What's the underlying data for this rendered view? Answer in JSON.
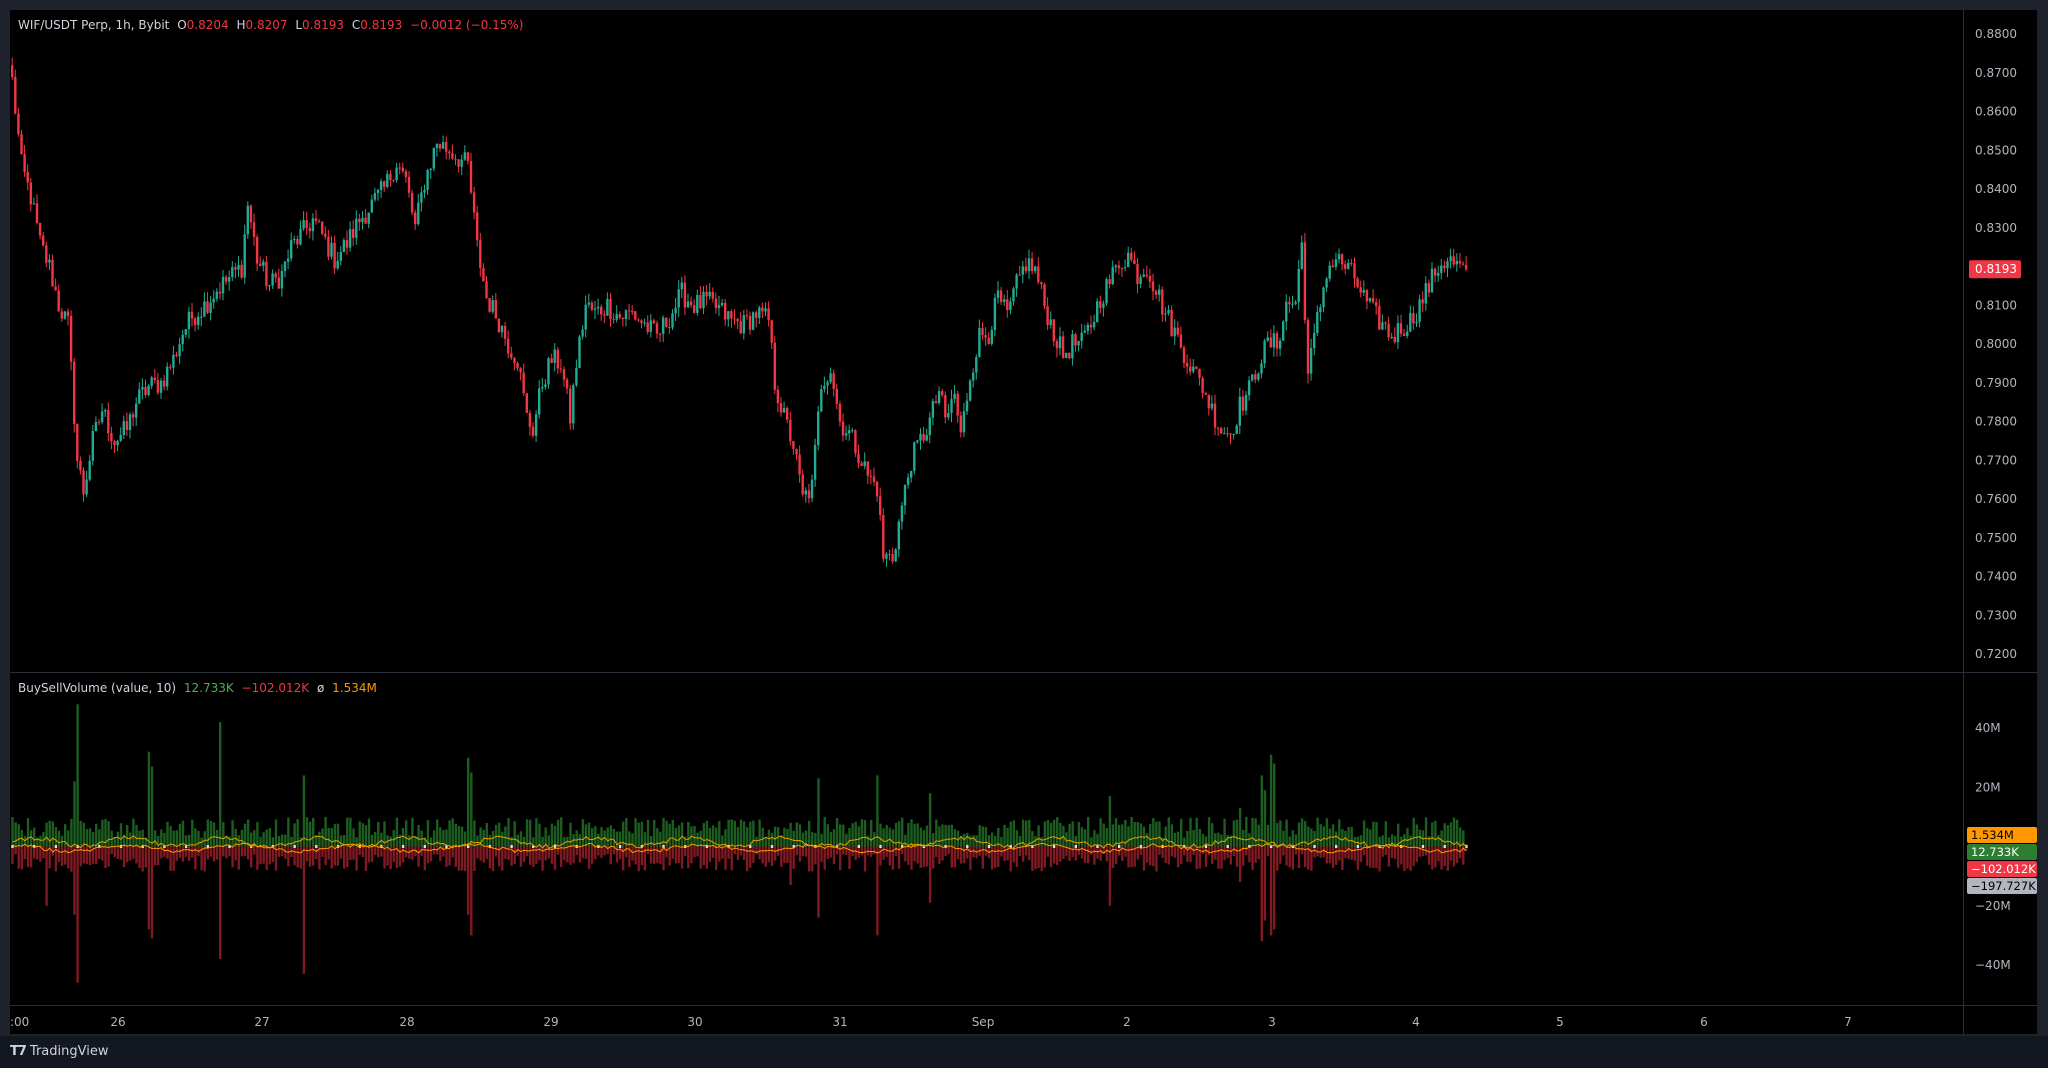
{
  "header": {
    "symbol": "WIF/USDT Perp, 1h, Bybit",
    "o_label": "O",
    "o_value": "0.8204",
    "h_label": "H",
    "h_value": "0.8207",
    "l_label": "L",
    "l_value": "0.8193",
    "c_label": "C",
    "c_value": "0.8193",
    "change": "−0.0012 (−0.15%)"
  },
  "volume_legend": {
    "name": "BuySellVolume (value, 10)",
    "buy": "12.733K",
    "sell": "−102.012K",
    "avg_symbol": "ø",
    "avg": "1.534M"
  },
  "price_axis": {
    "ticks": [
      "0.8800",
      "0.8700",
      "0.8600",
      "0.8500",
      "0.8400",
      "0.8300",
      "0.8100",
      "0.8000",
      "0.7900",
      "0.7800",
      "0.7700",
      "0.7600",
      "0.7500",
      "0.7400",
      "0.7300",
      "0.7200"
    ],
    "current_price": "0.8193"
  },
  "volume_axis": {
    "ticks": [
      "40M",
      "20M",
      "−20M",
      "−40M"
    ],
    "badges": [
      "1.534M",
      "12.733K",
      "−102.012K",
      "−197.727K"
    ]
  },
  "time_axis": {
    "labels": [
      ":00",
      "26",
      "27",
      "28",
      "29",
      "30",
      "31",
      "Sep",
      "2",
      "3",
      "4",
      "5",
      "6",
      "7"
    ]
  },
  "colors": {
    "up": "#22ab94",
    "down": "#f23645",
    "buy_volume": "#1b5e20",
    "sell_volume": "#801922",
    "average_line": "#ff9800",
    "background": "#000000"
  },
  "branding": {
    "name": "TradingView"
  },
  "chart_data": [
    {
      "type": "candlestick",
      "title": "WIF/USDT Perp, 1h, Bybit",
      "ylim": [
        0.715,
        0.8845
      ],
      "timeframe": "1h",
      "anchors_close": [
        [
          0,
          0.868
        ],
        [
          3,
          0.846
        ],
        [
          6,
          0.838
        ],
        [
          9,
          0.826
        ],
        [
          12,
          0.82
        ],
        [
          15,
          0.81
        ],
        [
          18,
          0.805
        ],
        [
          21,
          0.77
        ],
        [
          23,
          0.762
        ],
        [
          26,
          0.775
        ],
        [
          29,
          0.783
        ],
        [
          33,
          0.775
        ],
        [
          37,
          0.778
        ],
        [
          40,
          0.785
        ],
        [
          44,
          0.789
        ],
        [
          48,
          0.79
        ],
        [
          52,
          0.796
        ],
        [
          55,
          0.803
        ],
        [
          58,
          0.807
        ],
        [
          62,
          0.81
        ],
        [
          66,
          0.814
        ],
        [
          70,
          0.817
        ],
        [
          74,
          0.82
        ],
        [
          76,
          0.836
        ],
        [
          79,
          0.822
        ],
        [
          83,
          0.815
        ],
        [
          87,
          0.818
        ],
        [
          90,
          0.825
        ],
        [
          94,
          0.829
        ],
        [
          97,
          0.832
        ],
        [
          100,
          0.828
        ],
        [
          104,
          0.822
        ],
        [
          108,
          0.826
        ],
        [
          112,
          0.832
        ],
        [
          116,
          0.836
        ],
        [
          120,
          0.84
        ],
        [
          124,
          0.847
        ],
        [
          127,
          0.842
        ],
        [
          130,
          0.83
        ],
        [
          133,
          0.842
        ],
        [
          137,
          0.852
        ],
        [
          141,
          0.85
        ],
        [
          144,
          0.848
        ],
        [
          147,
          0.846
        ],
        [
          150,
          0.825
        ],
        [
          153,
          0.812
        ],
        [
          157,
          0.806
        ],
        [
          160,
          0.8
        ],
        [
          163,
          0.796
        ],
        [
          166,
          0.781
        ],
        [
          168,
          0.778
        ],
        [
          171,
          0.79
        ],
        [
          174,
          0.796
        ],
        [
          177,
          0.795
        ],
        [
          180,
          0.781
        ],
        [
          182,
          0.795
        ],
        [
          185,
          0.81
        ],
        [
          188,
          0.808
        ],
        [
          192,
          0.81
        ],
        [
          196,
          0.807
        ],
        [
          200,
          0.808
        ],
        [
          204,
          0.805
        ],
        [
          208,
          0.802
        ],
        [
          212,
          0.807
        ],
        [
          216,
          0.813
        ],
        [
          220,
          0.81
        ],
        [
          224,
          0.811
        ],
        [
          228,
          0.809
        ],
        [
          232,
          0.806
        ],
        [
          236,
          0.805
        ],
        [
          240,
          0.808
        ],
        [
          244,
          0.806
        ],
        [
          246,
          0.79
        ],
        [
          249,
          0.781
        ],
        [
          252,
          0.774
        ],
        [
          255,
          0.76
        ],
        [
          258,
          0.763
        ],
        [
          261,
          0.79
        ],
        [
          264,
          0.794
        ],
        [
          267,
          0.78
        ],
        [
          270,
          0.777
        ],
        [
          273,
          0.772
        ],
        [
          276,
          0.766
        ],
        [
          279,
          0.763
        ],
        [
          281,
          0.745
        ],
        [
          284,
          0.745
        ],
        [
          287,
          0.758
        ],
        [
          290,
          0.77
        ],
        [
          293,
          0.775
        ],
        [
          296,
          0.78
        ],
        [
          299,
          0.788
        ],
        [
          301,
          0.78
        ],
        [
          304,
          0.787
        ],
        [
          306,
          0.776
        ],
        [
          309,
          0.792
        ],
        [
          312,
          0.802
        ],
        [
          315,
          0.803
        ],
        [
          318,
          0.812
        ],
        [
          321,
          0.807
        ],
        [
          324,
          0.815
        ],
        [
          327,
          0.821
        ],
        [
          330,
          0.819
        ],
        [
          333,
          0.81
        ],
        [
          336,
          0.803
        ],
        [
          339,
          0.797
        ],
        [
          342,
          0.8
        ],
        [
          345,
          0.8
        ],
        [
          348,
          0.805
        ],
        [
          351,
          0.812
        ],
        [
          354,
          0.816
        ],
        [
          357,
          0.821
        ],
        [
          360,
          0.823
        ],
        [
          363,
          0.818
        ],
        [
          366,
          0.82
        ],
        [
          369,
          0.814
        ],
        [
          372,
          0.808
        ],
        [
          375,
          0.803
        ],
        [
          378,
          0.798
        ],
        [
          381,
          0.793
        ],
        [
          384,
          0.789
        ],
        [
          387,
          0.783
        ],
        [
          390,
          0.778
        ],
        [
          393,
          0.777
        ],
        [
          396,
          0.784
        ],
        [
          399,
          0.788
        ],
        [
          402,
          0.795
        ],
        [
          405,
          0.8
        ],
        [
          408,
          0.8
        ],
        [
          411,
          0.81
        ],
        [
          414,
          0.811
        ],
        [
          416,
          0.826
        ],
        [
          418,
          0.792
        ],
        [
          421,
          0.806
        ],
        [
          424,
          0.819
        ],
        [
          427,
          0.822
        ],
        [
          430,
          0.82
        ],
        [
          433,
          0.817
        ],
        [
          436,
          0.812
        ],
        [
          439,
          0.808
        ],
        [
          442,
          0.805
        ],
        [
          445,
          0.802
        ],
        [
          448,
          0.804
        ],
        [
          451,
          0.806
        ],
        [
          454,
          0.81
        ],
        [
          457,
          0.815
        ],
        [
          460,
          0.82
        ],
        [
          463,
          0.822
        ],
        [
          466,
          0.82
        ],
        [
          469,
          0.8193
        ]
      ],
      "last": {
        "open": 0.8204,
        "high": 0.8207,
        "low": 0.8193,
        "close": 0.8193,
        "change": -0.0012,
        "change_pct": -0.15
      },
      "x_labels": [
        ":00",
        "26",
        "27",
        "28",
        "29",
        "30",
        "31",
        "Sep",
        "2",
        "3",
        "4",
        "5",
        "6",
        "7"
      ]
    },
    {
      "type": "bar",
      "title": "BuySellVolume (value, 10)",
      "ylim": [
        -54,
        54
      ],
      "unit": "M",
      "last_buy": 0.012733,
      "last_sell": -0.102012,
      "average": 1.534,
      "spikes_buy": [
        [
          20,
          22
        ],
        [
          21,
          48
        ],
        [
          44,
          32
        ],
        [
          45,
          27
        ],
        [
          67,
          42
        ],
        [
          94,
          24
        ],
        [
          147,
          30
        ],
        [
          148,
          25
        ],
        [
          251,
          8
        ],
        [
          260,
          23
        ],
        [
          279,
          24
        ],
        [
          296,
          18
        ],
        [
          354,
          17
        ],
        [
          396,
          13
        ],
        [
          403,
          24
        ],
        [
          404,
          19
        ],
        [
          406,
          31
        ],
        [
          407,
          28
        ]
      ],
      "spikes_sell": [
        [
          11,
          20
        ],
        [
          20,
          23
        ],
        [
          21,
          46
        ],
        [
          44,
          28
        ],
        [
          45,
          31
        ],
        [
          67,
          38
        ],
        [
          94,
          43
        ],
        [
          147,
          23
        ],
        [
          148,
          30
        ],
        [
          251,
          13
        ],
        [
          260,
          24
        ],
        [
          279,
          30
        ],
        [
          296,
          19
        ],
        [
          354,
          20
        ],
        [
          396,
          12
        ],
        [
          403,
          32
        ],
        [
          404,
          25
        ],
        [
          406,
          30
        ],
        [
          407,
          28
        ]
      ]
    }
  ]
}
